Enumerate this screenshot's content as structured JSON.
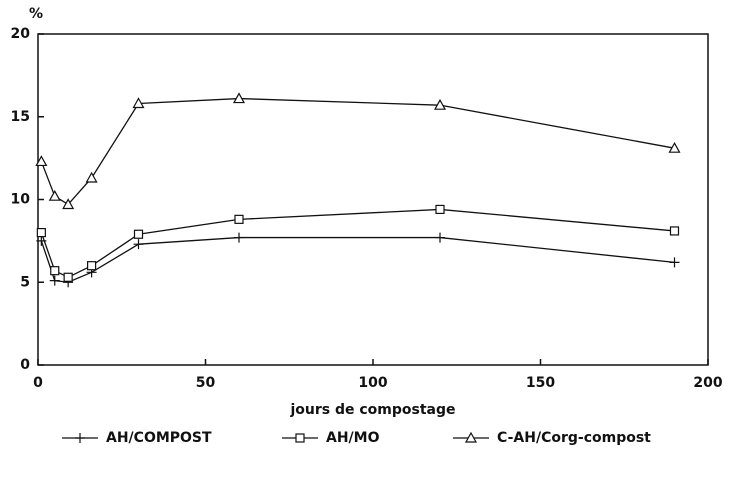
{
  "chart_data": {
    "type": "line",
    "y_unit": "%",
    "x_label": "jours de compostage",
    "xlim": [
      0,
      200
    ],
    "xticks": [
      0,
      50,
      100,
      150,
      200
    ],
    "ylim": [
      0,
      20
    ],
    "yticks": [
      0,
      5,
      10,
      15,
      20
    ],
    "series": [
      {
        "name": "AH/COMPOST",
        "marker": "plus",
        "color": "#111",
        "x": [
          1,
          5,
          9,
          16,
          30,
          60,
          120,
          190
        ],
        "values": [
          7.5,
          5.1,
          5.0,
          5.6,
          7.3,
          7.7,
          7.7,
          6.2
        ]
      },
      {
        "name": "AH/MO",
        "marker": "square",
        "color": "#111",
        "x": [
          1,
          5,
          9,
          16,
          30,
          60,
          120,
          190
        ],
        "values": [
          8.0,
          5.7,
          5.3,
          6.0,
          7.9,
          8.8,
          9.4,
          8.1
        ]
      },
      {
        "name": "C-AH/Corg-compost",
        "marker": "triangle",
        "color": "#111",
        "x": [
          1,
          5,
          9,
          16,
          30,
          60,
          120,
          190
        ],
        "values": [
          12.3,
          10.2,
          9.7,
          11.3,
          15.8,
          16.1,
          15.7,
          13.1
        ]
      }
    ]
  }
}
